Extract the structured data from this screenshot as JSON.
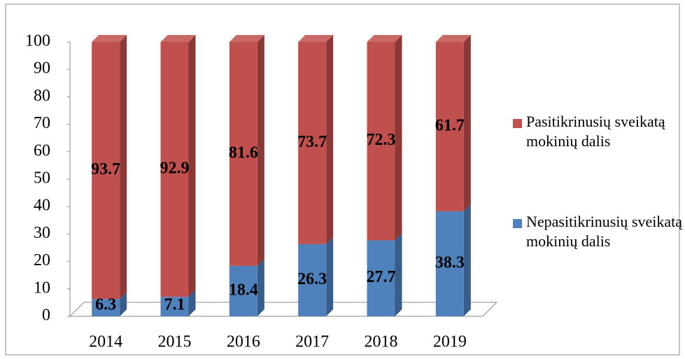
{
  "chart_data": {
    "type": "bar3d_stacked",
    "categories": [
      "2014",
      "2015",
      "2016",
      "2017",
      "2018",
      "2019"
    ],
    "series": [
      {
        "name": "Nepasitikrinusių sveikatą mokinių dalis",
        "color": "#4f81bd",
        "side_color": "#385d8a",
        "values": [
          6.3,
          7.1,
          18.4,
          26.3,
          27.7,
          38.3
        ]
      },
      {
        "name": "Pasitikrinusių sveikatą mokinių dalis",
        "color": "#c0504d",
        "side_color": "#8c3836",
        "values": [
          93.7,
          92.9,
          81.6,
          73.7,
          72.3,
          61.7
        ]
      }
    ],
    "ylim": [
      0,
      100
    ],
    "yticks": [
      0,
      10,
      20,
      30,
      40,
      50,
      60,
      70,
      80,
      90,
      100
    ],
    "legend": "right"
  }
}
